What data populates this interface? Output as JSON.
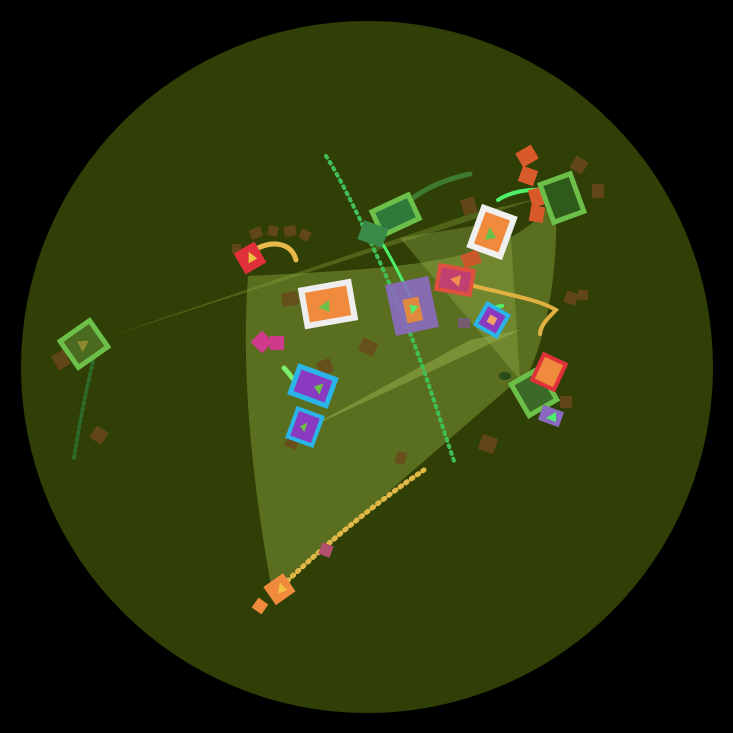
{
  "scene": {
    "background_color": "#000000",
    "arena_color": "#2f3f05",
    "beam_color": "#8fa840",
    "palette": {
      "green": "#6cc04a",
      "bright_green": "#4ef06a",
      "orange": "#f08a3c",
      "red": "#e0303a",
      "magenta": "#e03a8c",
      "purple": "#9a5cd0",
      "cyan": "#2ab4e8",
      "yellow": "#f0c040",
      "white": "#f0f0f0",
      "brown": "#6b4a1c"
    },
    "entities": [
      {
        "id": "ship-left",
        "kind": "green-square-ship"
      },
      {
        "id": "ship-top-center",
        "kind": "green-square-ship"
      },
      {
        "id": "ship-top-right",
        "kind": "green-square-ship"
      },
      {
        "id": "ship-right-lower",
        "kind": "green-square-ship"
      },
      {
        "id": "ship-purple-center",
        "kind": "purple-block-ship"
      },
      {
        "id": "ship-white-center",
        "kind": "white-square-ship"
      },
      {
        "id": "ship-white-right",
        "kind": "white-square-ship"
      },
      {
        "id": "ship-red-center",
        "kind": "red-square-ship"
      },
      {
        "id": "ship-red-left",
        "kind": "red-square-ship"
      },
      {
        "id": "ship-red-right",
        "kind": "red-square-ship"
      },
      {
        "id": "ship-cyan-purple",
        "kind": "cyan-square-ship"
      },
      {
        "id": "ship-cyan-small",
        "kind": "cyan-square-ship"
      },
      {
        "id": "ship-cyan-right",
        "kind": "cyan-square-ship"
      },
      {
        "id": "ship-orange-bottom",
        "kind": "orange-square-ship"
      }
    ]
  }
}
